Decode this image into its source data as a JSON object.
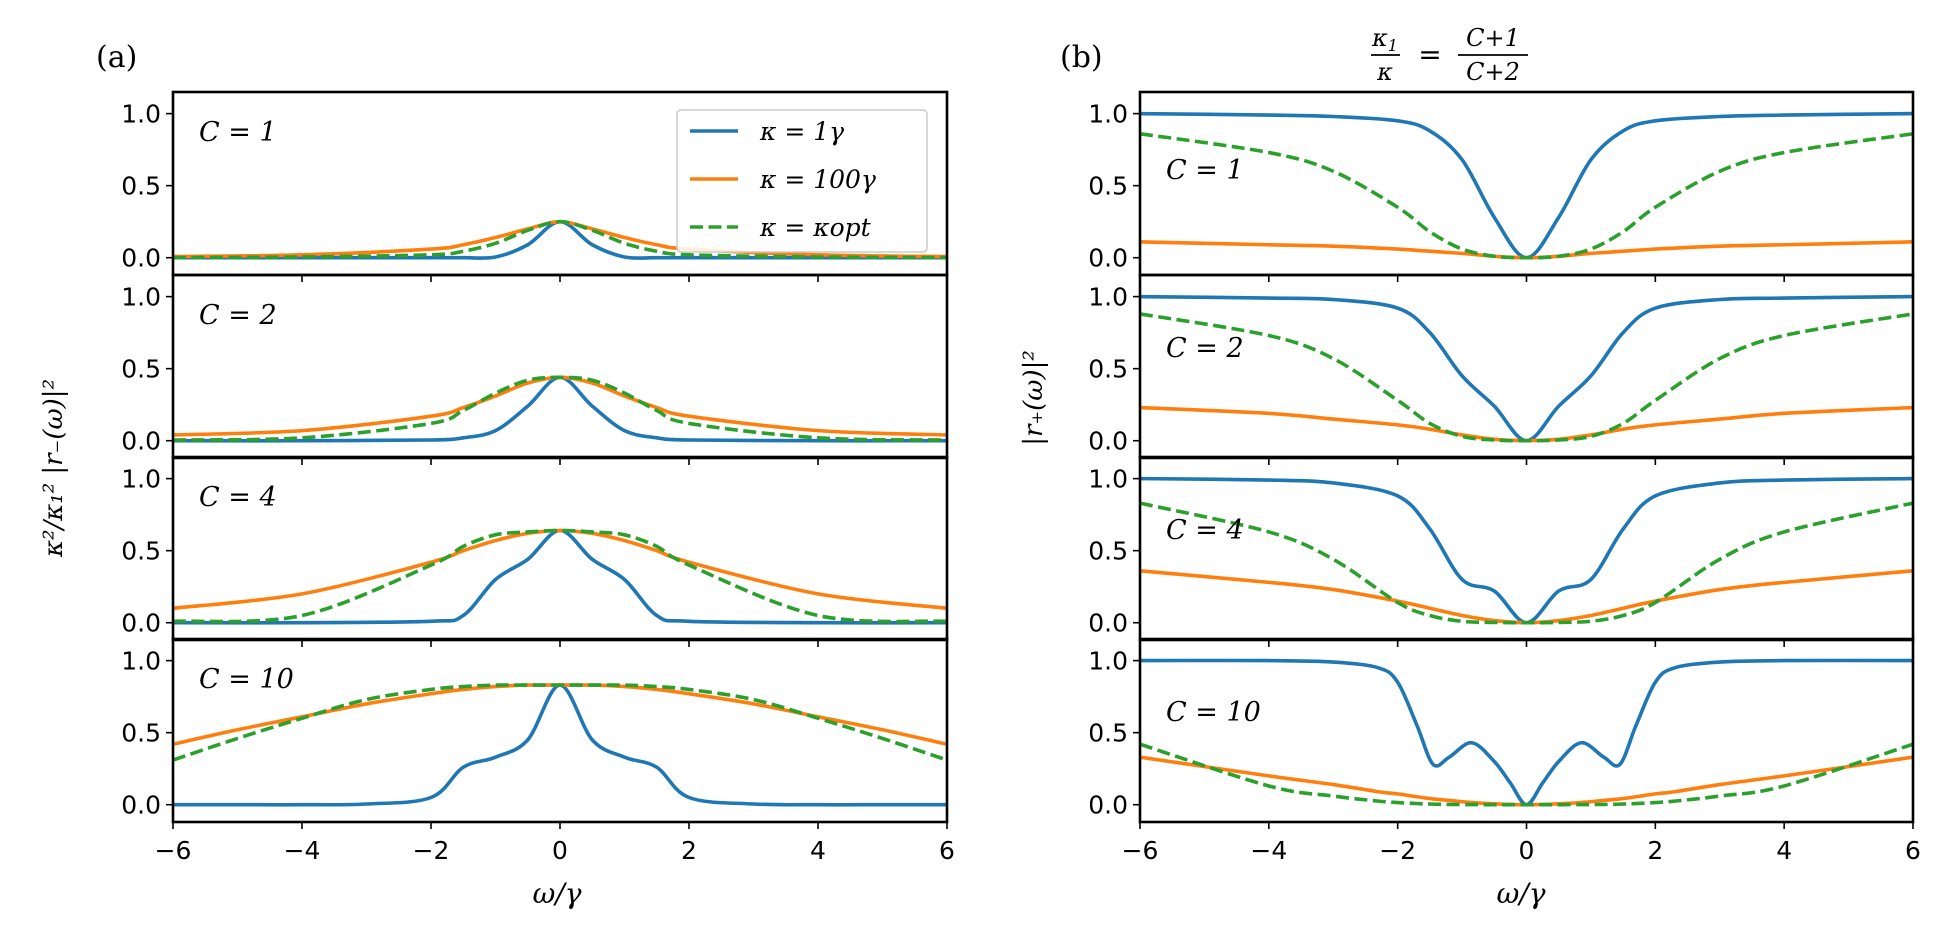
{
  "figure": {
    "title_b": "κ₁/κ = (C+1)/(C+2)",
    "title_b_num_a": "κ",
    "title_b_num_a_sub": "1",
    "title_b_den_a": "κ",
    "title_b_eq": "=",
    "title_b_num_b": "C+1",
    "title_b_den_b": "C+2"
  },
  "colors": {
    "blue": "#1f77b4",
    "orange": "#ff7f0e",
    "green": "#2ca02c"
  },
  "chart_data": [
    {
      "type": "line",
      "panel_label": "(a)",
      "ylabel": "κ²/κ₁² |r₋(ω)|²",
      "xlabel": "ω/γ",
      "xlim": [
        -6,
        6
      ],
      "ylim": [
        -0.12,
        1.15
      ],
      "xticks": [
        -6,
        -4,
        -2,
        0,
        2,
        4,
        6
      ],
      "xtick_labels": [
        "−6",
        "−4",
        "−2",
        "0",
        "2",
        "4",
        "6"
      ],
      "yticks": [
        0.0,
        0.5,
        1.0
      ],
      "ytick_labels": [
        "0.0",
        "0.5",
        "1.0"
      ],
      "legend": {
        "location": "upper right of top subplot",
        "entries": [
          {
            "label": "κ = 1γ",
            "color": "blue",
            "style": "solid"
          },
          {
            "label": "κ = 100γ",
            "color": "orange",
            "style": "solid"
          },
          {
            "label": "κ = κopt",
            "color": "green",
            "style": "dashed"
          }
        ]
      },
      "subplots": [
        {
          "C_label": "C = 1",
          "x": [
            -6,
            -4,
            -2,
            -1.5,
            -1,
            -0.5,
            0,
            0.5,
            1,
            1.5,
            2,
            4,
            6
          ],
          "series": [
            {
              "name": "κ = 1γ",
              "color": "blue",
              "style": "solid",
              "values": [
                0,
                0,
                0,
                0,
                0.005,
                0.09,
                0.25,
                0.09,
                0.005,
                0,
                0,
                0,
                0
              ]
            },
            {
              "name": "κ = 100γ",
              "color": "orange",
              "style": "solid",
              "values": [
                0.008,
                0.02,
                0.06,
                0.09,
                0.14,
                0.2,
                0.25,
                0.2,
                0.14,
                0.09,
                0.06,
                0.02,
                0.008
              ]
            },
            {
              "name": "κ = κopt",
              "color": "green",
              "style": "dashed",
              "values": [
                0.001,
                0.005,
                0.02,
                0.045,
                0.1,
                0.19,
                0.25,
                0.19,
                0.1,
                0.045,
                0.02,
                0.005,
                0.001
              ]
            }
          ]
        },
        {
          "C_label": "C = 2",
          "x": [
            -6,
            -4,
            -2,
            -1.5,
            -1,
            -0.5,
            0,
            0.5,
            1,
            1.5,
            2,
            4,
            6
          ],
          "series": [
            {
              "name": "κ = 1γ",
              "color": "blue",
              "style": "solid",
              "values": [
                0,
                0,
                0.005,
                0.02,
                0.07,
                0.24,
                0.44,
                0.24,
                0.07,
                0.02,
                0.005,
                0,
                0
              ]
            },
            {
              "name": "κ = 100γ",
              "color": "orange",
              "style": "solid",
              "values": [
                0.04,
                0.07,
                0.17,
                0.23,
                0.31,
                0.4,
                0.44,
                0.4,
                0.31,
                0.23,
                0.17,
                0.07,
                0.04
              ]
            },
            {
              "name": "κ = κopt",
              "color": "green",
              "style": "dashed",
              "values": [
                0.005,
                0.02,
                0.12,
                0.21,
                0.33,
                0.42,
                0.44,
                0.42,
                0.33,
                0.21,
                0.12,
                0.02,
                0.005
              ]
            }
          ]
        },
        {
          "C_label": "C = 4",
          "x": [
            -6,
            -4,
            -2,
            -1.5,
            -1,
            -0.5,
            0,
            0.5,
            1,
            1.5,
            2,
            4,
            6
          ],
          "series": [
            {
              "name": "κ = 1γ",
              "color": "blue",
              "style": "solid",
              "values": [
                0,
                0,
                0.01,
                0.05,
                0.3,
                0.44,
                0.64,
                0.44,
                0.3,
                0.05,
                0.01,
                0,
                0
              ]
            },
            {
              "name": "κ = 100γ",
              "color": "orange",
              "style": "solid",
              "values": [
                0.1,
                0.2,
                0.42,
                0.5,
                0.57,
                0.62,
                0.64,
                0.62,
                0.57,
                0.5,
                0.42,
                0.2,
                0.1
              ]
            },
            {
              "name": "κ = κopt",
              "color": "green",
              "style": "dashed",
              "values": [
                0.01,
                0.05,
                0.4,
                0.53,
                0.61,
                0.63,
                0.64,
                0.63,
                0.61,
                0.53,
                0.4,
                0.05,
                0.01
              ]
            }
          ]
        },
        {
          "C_label": "C = 10",
          "x": [
            -6,
            -5,
            -4,
            -3,
            -2,
            -1.5,
            -1,
            -0.5,
            0,
            0.5,
            1,
            1.5,
            2,
            3,
            4,
            5,
            6
          ],
          "series": [
            {
              "name": "κ = 1γ",
              "color": "blue",
              "style": "solid",
              "values": [
                0,
                0,
                0,
                0.005,
                0.05,
                0.26,
                0.33,
                0.45,
                0.83,
                0.45,
                0.33,
                0.26,
                0.05,
                0.005,
                0,
                0,
                0
              ]
            },
            {
              "name": "κ = 100γ",
              "color": "orange",
              "style": "solid",
              "values": [
                0.42,
                0.52,
                0.61,
                0.7,
                0.77,
                0.8,
                0.82,
                0.83,
                0.83,
                0.83,
                0.82,
                0.8,
                0.77,
                0.7,
                0.61,
                0.52,
                0.42
              ]
            },
            {
              "name": "κ = κopt",
              "color": "green",
              "style": "dashed",
              "values": [
                0.31,
                0.46,
                0.6,
                0.73,
                0.8,
                0.82,
                0.83,
                0.83,
                0.83,
                0.83,
                0.83,
                0.82,
                0.8,
                0.73,
                0.6,
                0.46,
                0.31
              ]
            }
          ]
        }
      ]
    },
    {
      "type": "line",
      "panel_label": "(b)",
      "ylabel": "|r₊(ω)|²",
      "xlabel": "ω/γ",
      "xlim": [
        -6,
        6
      ],
      "ylim": [
        -0.12,
        1.15
      ],
      "xticks": [
        -6,
        -4,
        -2,
        0,
        2,
        4,
        6
      ],
      "xtick_labels": [
        "−6",
        "−4",
        "−2",
        "0",
        "2",
        "4",
        "6"
      ],
      "yticks": [
        0.0,
        0.5,
        1.0
      ],
      "ytick_labels": [
        "0.0",
        "0.5",
        "1.0"
      ],
      "subplots": [
        {
          "C_label": "C = 1",
          "x": [
            -6,
            -4,
            -3,
            -2,
            -1.5,
            -1,
            -0.5,
            0,
            0.5,
            1,
            1.5,
            2,
            3,
            4,
            6
          ],
          "series": [
            {
              "name": "κ = 1γ",
              "color": "blue",
              "style": "solid",
              "values": [
                1.0,
                0.99,
                0.98,
                0.95,
                0.88,
                0.68,
                0.28,
                0.0,
                0.28,
                0.68,
                0.88,
                0.95,
                0.98,
                0.99,
                1.0
              ]
            },
            {
              "name": "κ = 100γ",
              "color": "orange",
              "style": "solid",
              "values": [
                0.11,
                0.09,
                0.08,
                0.06,
                0.045,
                0.03,
                0.01,
                0.0,
                0.01,
                0.03,
                0.045,
                0.06,
                0.08,
                0.09,
                0.11
              ]
            },
            {
              "name": "κ = κopt",
              "color": "green",
              "style": "dashed",
              "values": [
                0.86,
                0.73,
                0.6,
                0.35,
                0.18,
                0.06,
                0.01,
                0.0,
                0.01,
                0.06,
                0.18,
                0.35,
                0.6,
                0.73,
                0.86
              ]
            }
          ]
        },
        {
          "C_label": "C = 2",
          "x": [
            -6,
            -4,
            -3,
            -2,
            -1.5,
            -1,
            -0.5,
            0,
            0.5,
            1,
            1.5,
            2,
            3,
            4,
            6
          ],
          "series": [
            {
              "name": "κ = 1γ",
              "color": "blue",
              "style": "solid",
              "values": [
                1.0,
                0.99,
                0.98,
                0.92,
                0.75,
                0.45,
                0.24,
                0.0,
                0.24,
                0.45,
                0.75,
                0.92,
                0.98,
                0.99,
                1.0
              ]
            },
            {
              "name": "κ = 100γ",
              "color": "orange",
              "style": "solid",
              "values": [
                0.23,
                0.19,
                0.15,
                0.11,
                0.08,
                0.04,
                0.01,
                0.0,
                0.01,
                0.04,
                0.08,
                0.11,
                0.15,
                0.19,
                0.23
              ]
            },
            {
              "name": "κ = κopt",
              "color": "green",
              "style": "dashed",
              "values": [
                0.88,
                0.73,
                0.57,
                0.28,
                0.12,
                0.03,
                0.005,
                0.0,
                0.005,
                0.03,
                0.12,
                0.28,
                0.57,
                0.73,
                0.88
              ]
            }
          ]
        },
        {
          "C_label": "C = 4",
          "x": [
            -6,
            -4,
            -3,
            -2,
            -1.5,
            -1,
            -0.5,
            0,
            0.5,
            1,
            1.5,
            2,
            3,
            4,
            6
          ],
          "series": [
            {
              "name": "κ = 1γ",
              "color": "blue",
              "style": "solid",
              "values": [
                1.0,
                0.99,
                0.97,
                0.88,
                0.65,
                0.3,
                0.22,
                0.0,
                0.22,
                0.3,
                0.65,
                0.88,
                0.97,
                0.99,
                1.0
              ]
            },
            {
              "name": "κ = 100γ",
              "color": "orange",
              "style": "solid",
              "values": [
                0.36,
                0.28,
                0.23,
                0.15,
                0.1,
                0.05,
                0.015,
                0.0,
                0.015,
                0.05,
                0.1,
                0.15,
                0.23,
                0.28,
                0.36
              ]
            },
            {
              "name": "κ = κopt",
              "color": "green",
              "style": "dashed",
              "values": [
                0.83,
                0.63,
                0.44,
                0.14,
                0.05,
                0.01,
                0.002,
                0.0,
                0.002,
                0.01,
                0.05,
                0.14,
                0.44,
                0.63,
                0.83
              ]
            }
          ]
        },
        {
          "C_label": "C = 10",
          "x": [
            -6,
            -4,
            -3,
            -2.3,
            -2,
            -1.7,
            -1.45,
            -1.2,
            -0.85,
            -0.5,
            -0.25,
            0,
            0.25,
            0.5,
            0.85,
            1.2,
            1.45,
            1.7,
            2,
            2.3,
            3,
            4,
            6
          ],
          "series": [
            {
              "name": "κ = 1γ",
              "color": "blue",
              "style": "solid",
              "values": [
                1.0,
                1.0,
                0.99,
                0.95,
                0.85,
                0.55,
                0.28,
                0.33,
                0.43,
                0.3,
                0.15,
                0.0,
                0.15,
                0.3,
                0.43,
                0.33,
                0.28,
                0.55,
                0.85,
                0.95,
                0.99,
                1.0,
                1.0
              ]
            },
            {
              "name": "κ = 100γ",
              "color": "orange",
              "style": "solid",
              "values": [
                0.33,
                0.2,
                0.14,
                0.09,
                0.075,
                0.055,
                0.04,
                0.03,
                0.015,
                0.006,
                0.002,
                0.0,
                0.002,
                0.006,
                0.015,
                0.03,
                0.04,
                0.055,
                0.075,
                0.09,
                0.14,
                0.2,
                0.33
              ]
            },
            {
              "name": "κ = κopt",
              "color": "green",
              "style": "dashed",
              "values": [
                0.42,
                0.13,
                0.06,
                0.025,
                0.015,
                0.008,
                0.004,
                0.002,
                0.001,
                0.0,
                0.0,
                0.0,
                0.0,
                0.0,
                0.001,
                0.002,
                0.004,
                0.008,
                0.015,
                0.025,
                0.06,
                0.13,
                0.42
              ]
            }
          ]
        }
      ]
    }
  ]
}
